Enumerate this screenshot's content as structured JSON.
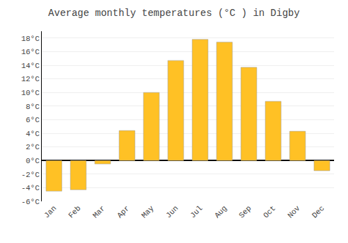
{
  "chart_data": {
    "type": "bar",
    "title": "Average monthly temperatures (°C ) in Digby",
    "categories": [
      "Jan",
      "Feb",
      "Mar",
      "Apr",
      "May",
      "Jun",
      "Jul",
      "Aug",
      "Sep",
      "Oct",
      "Nov",
      "Dec"
    ],
    "values": [
      -4.5,
      -4.3,
      -0.5,
      4.4,
      10.0,
      14.7,
      17.8,
      17.4,
      13.7,
      8.7,
      4.3,
      -1.5
    ],
    "color": "#FFC125",
    "ylim": [
      -6,
      19
    ],
    "yticks": [
      {
        "value": -6,
        "label": "-6°C"
      },
      {
        "value": -4,
        "label": "-4°C"
      },
      {
        "value": -2,
        "label": "-2°C"
      },
      {
        "value": 0,
        "label": "0°C"
      },
      {
        "value": 2,
        "label": "2°C"
      },
      {
        "value": 4,
        "label": "4°C"
      },
      {
        "value": 6,
        "label": "6°C"
      },
      {
        "value": 8,
        "label": "8°C"
      },
      {
        "value": 10,
        "label": "10°C"
      },
      {
        "value": 12,
        "label": "12°C"
      },
      {
        "value": 14,
        "label": "14°C"
      },
      {
        "value": 16,
        "label": "16°C"
      },
      {
        "value": 18,
        "label": "18°C"
      }
    ],
    "grid": true
  }
}
